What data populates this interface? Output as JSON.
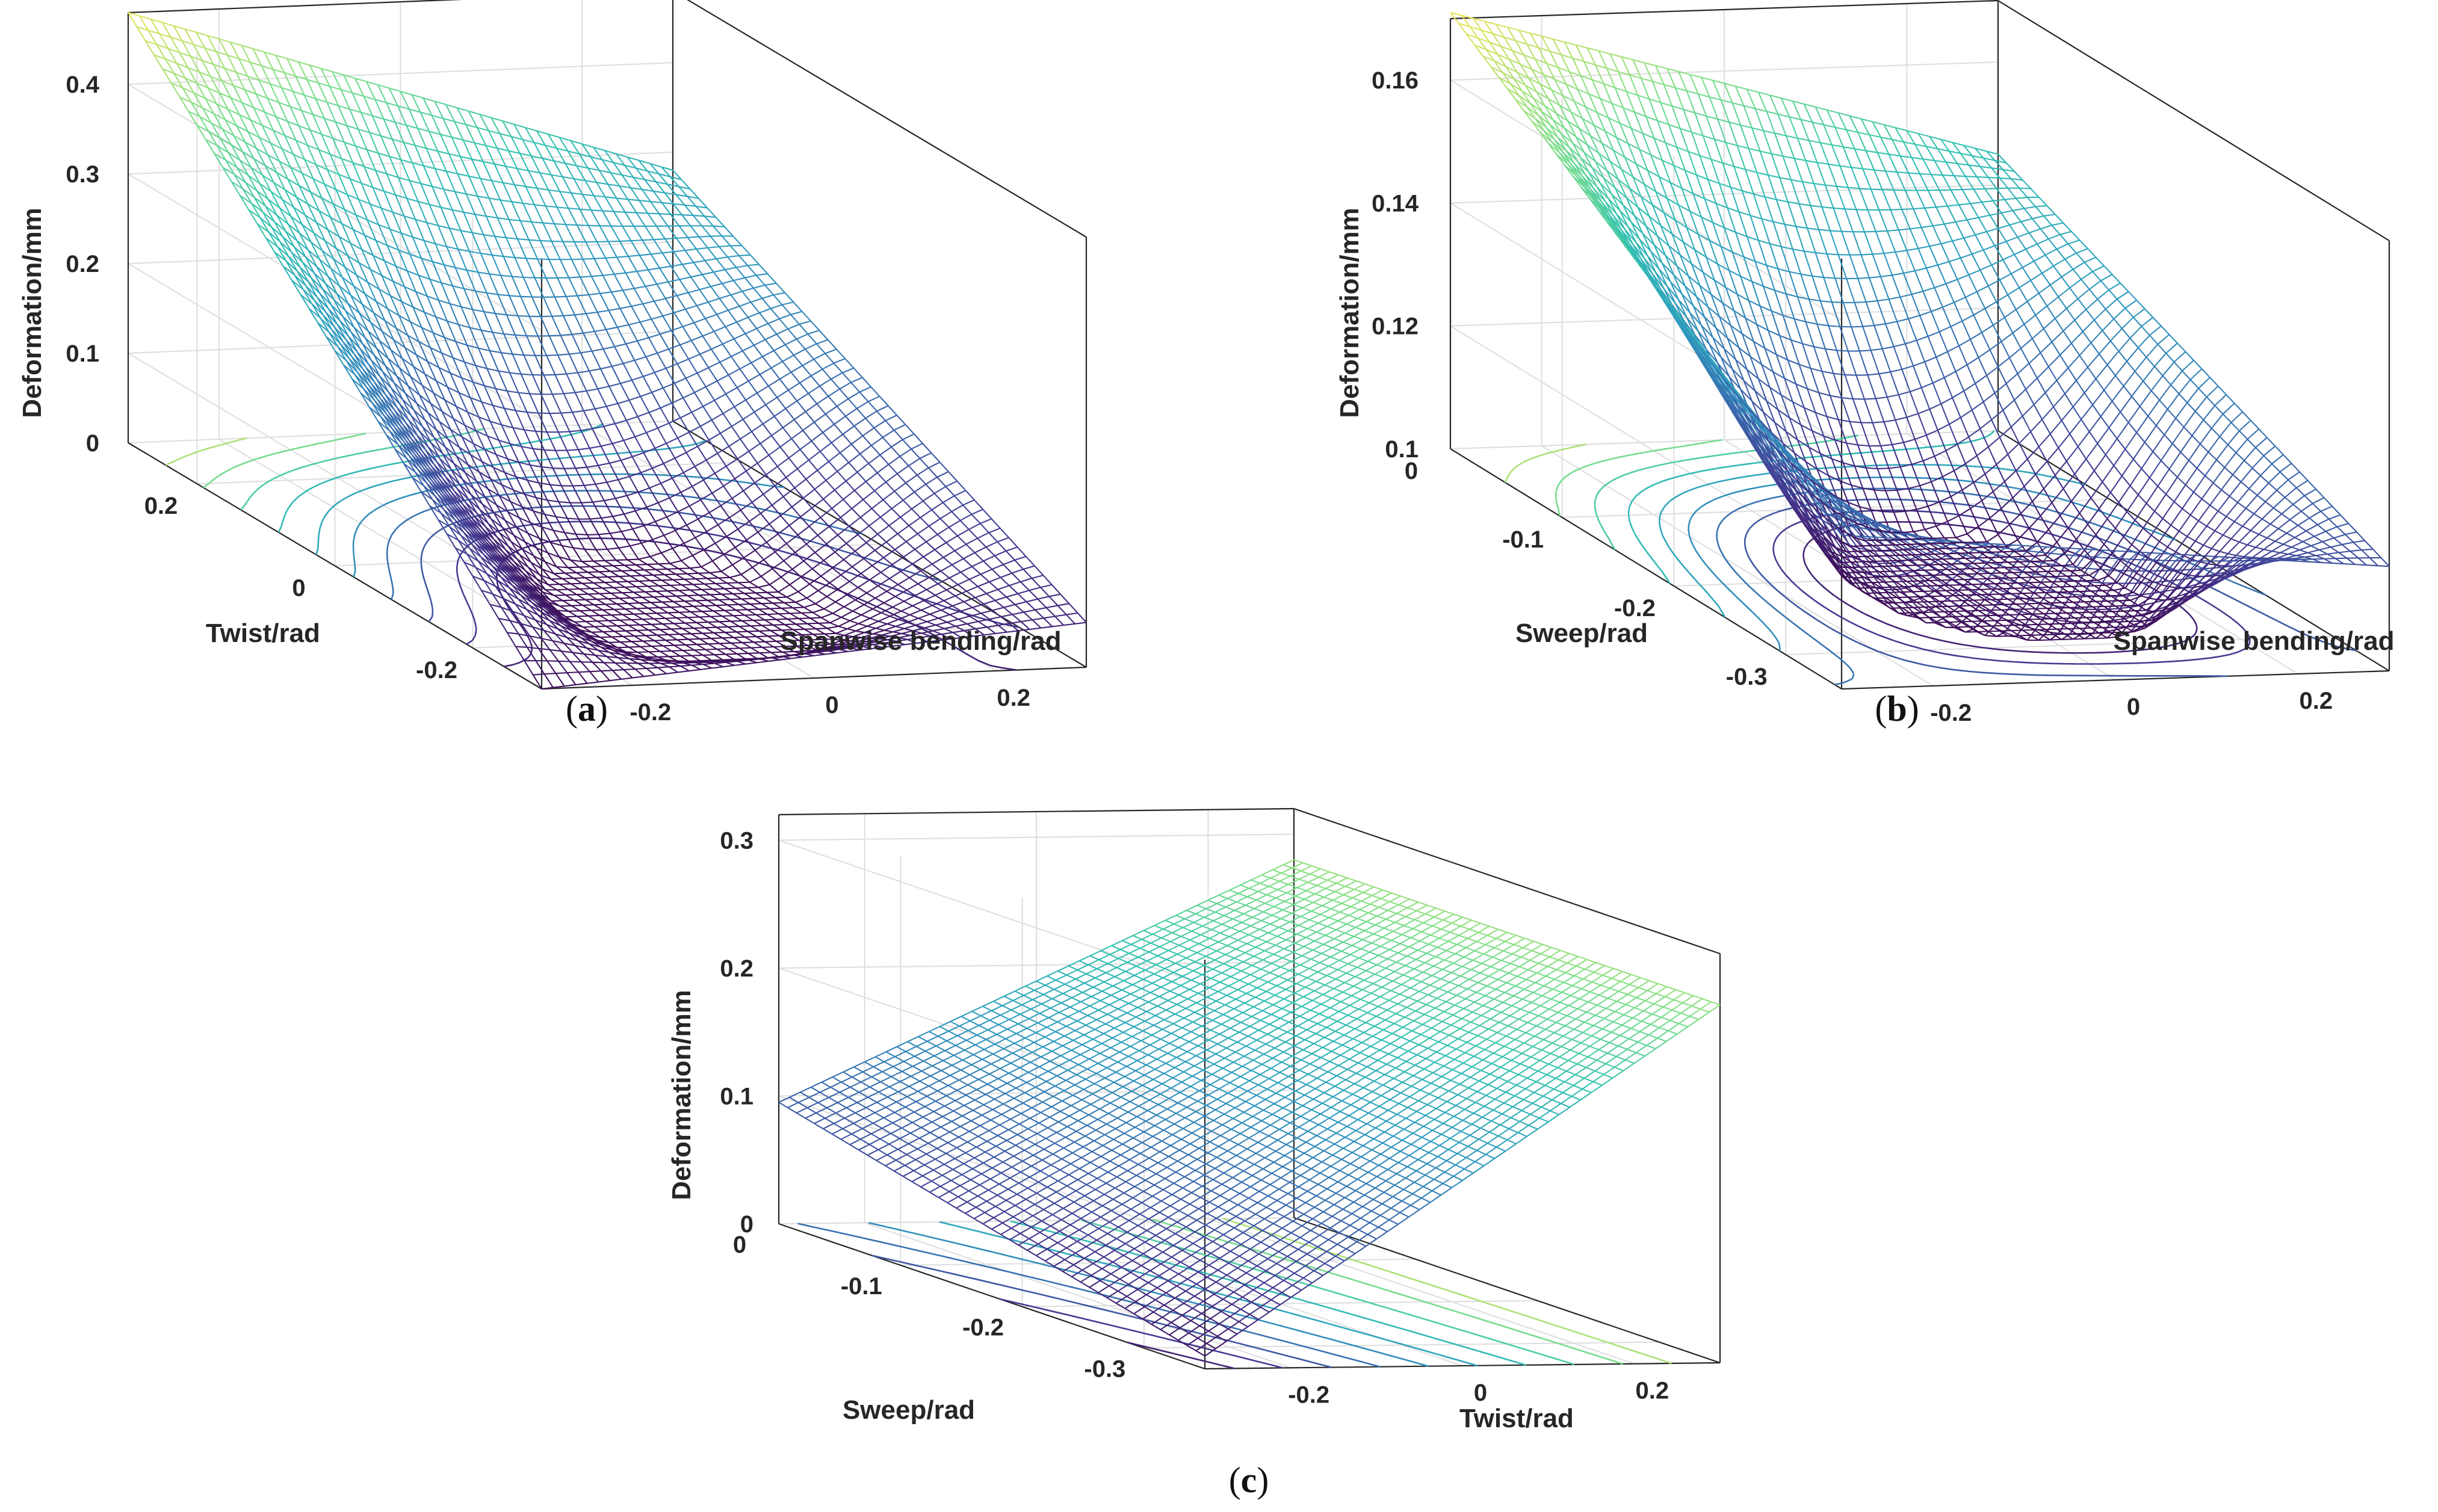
{
  "colors": {
    "colormap": [
      "#3e0f5a",
      "#45378f",
      "#3a6aae",
      "#2f9bc0",
      "#33c2b1",
      "#7ddf8b",
      "#e6e45a"
    ],
    "axes": "#262626",
    "grid": "#dedede"
  },
  "chart_data": [
    {
      "type": "surface",
      "panel": "(a)",
      "caption": {
        "open": "(",
        "letter": "a",
        "close": ")"
      },
      "xlabel": "Spanwise bending/rad",
      "ylabel": "Twist/rad",
      "zlabel": "Deformation/mm",
      "xlim": [
        -0.3,
        0.3
      ],
      "ylim": [
        -0.3,
        0.3
      ],
      "zlim": [
        0,
        0.48
      ],
      "xticks": [
        "-0.2",
        "0",
        "0.2"
      ],
      "xtick_values": [
        -0.2,
        0,
        0.2
      ],
      "yticks": [
        "-0.2",
        "0",
        "0.2"
      ],
      "ytick_values": [
        -0.2,
        0,
        0.2
      ],
      "zticks": [
        "0",
        "0.1",
        "0.2",
        "0.3",
        "0.4"
      ],
      "ztick_values": [
        0,
        0.1,
        0.2,
        0.3,
        0.4
      ],
      "corner_values": [
        {
          "x": -0.3,
          "y": 0.3,
          "z": 0.48
        },
        {
          "x": 0.3,
          "y": 0.3,
          "z": 0.28
        },
        {
          "x": 0.3,
          "y": -0.3,
          "z": 0.05
        },
        {
          "x": -0.3,
          "y": -0.3,
          "z": 0.0
        }
      ],
      "minimum": {
        "x": -0.15,
        "y": -0.22,
        "z": 0.0
      },
      "contour_projection": true,
      "grid": true
    },
    {
      "type": "surface",
      "panel": "(b)",
      "caption": {
        "open": "(",
        "letter": "b",
        "close": ")"
      },
      "xlabel": "Spanwise bending/rad",
      "ylabel": "Sweep/rad",
      "zlabel": "Deformation/mm",
      "xlim": [
        -0.3,
        0.3
      ],
      "ylim": [
        -0.35,
        0
      ],
      "zlim": [
        0.1,
        0.17
      ],
      "xticks": [
        "-0.2",
        "0",
        "0.2"
      ],
      "xtick_values": [
        -0.2,
        0,
        0.2
      ],
      "yticks": [
        "-0.3",
        "-0.2",
        "-0.1",
        "0"
      ],
      "ytick_values": [
        -0.3,
        -0.2,
        -0.1,
        0
      ],
      "zticks": [
        "0.1",
        "0.12",
        "0.14",
        "0.16"
      ],
      "ztick_values": [
        0.1,
        0.12,
        0.14,
        0.16
      ],
      "corner_values": [
        {
          "x": -0.3,
          "y": 0.0,
          "z": 0.171
        },
        {
          "x": 0.3,
          "y": 0.0,
          "z": 0.145
        },
        {
          "x": 0.3,
          "y": -0.35,
          "z": 0.117
        },
        {
          "x": -0.3,
          "y": -0.35,
          "z": 0.125
        }
      ],
      "minimum": {
        "x": 0.02,
        "y": -0.3,
        "z": 0.102
      },
      "contour_projection": true,
      "grid": true
    },
    {
      "type": "surface",
      "panel": "(c)",
      "caption": {
        "open": "(",
        "letter": "c",
        "close": ")"
      },
      "xlabel": "Twist/rad",
      "ylabel": "Sweep/rad",
      "zlabel": "Deformation/mm",
      "xlim": [
        -0.3,
        0.3
      ],
      "ylim": [
        -0.35,
        0
      ],
      "zlim": [
        0,
        0.32
      ],
      "xticks": [
        "-0.2",
        "0",
        "0.2"
      ],
      "xtick_values": [
        -0.2,
        0,
        0.2
      ],
      "yticks": [
        "-0.3",
        "-0.2",
        "-0.1",
        "0"
      ],
      "ytick_values": [
        -0.3,
        -0.2,
        -0.1,
        0
      ],
      "zticks": [
        "0",
        "0.1",
        "0.2",
        "0.3"
      ],
      "ztick_values": [
        0,
        0.1,
        0.2,
        0.3
      ],
      "corner_values": [
        {
          "x": -0.3,
          "y": 0.0,
          "z": 0.095
        },
        {
          "x": 0.3,
          "y": 0.0,
          "z": 0.28
        },
        {
          "x": 0.3,
          "y": -0.35,
          "z": 0.28
        },
        {
          "x": -0.3,
          "y": -0.35,
          "z": 0.01
        }
      ],
      "minimum": {
        "x": -0.3,
        "y": -0.35,
        "z": 0.01
      },
      "contour_projection": true,
      "grid": true
    }
  ]
}
